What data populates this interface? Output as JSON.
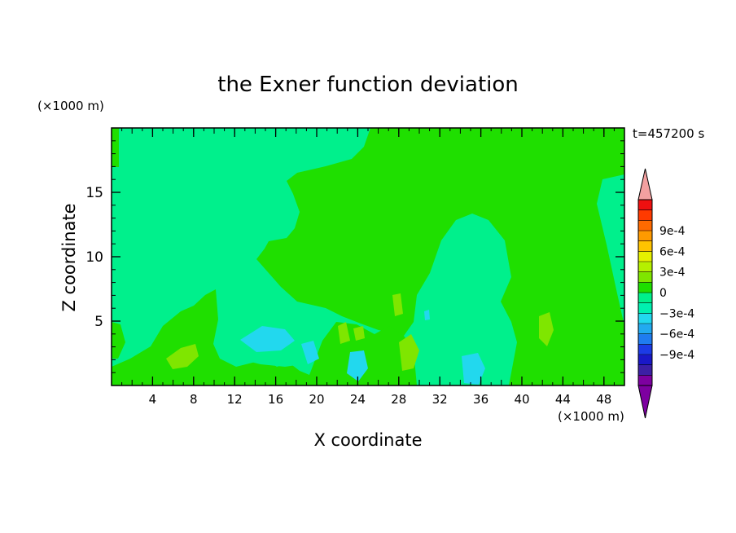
{
  "chart_data": {
    "type": "heatmap",
    "title": "the Exner function deviation",
    "xlabel": "X coordinate",
    "ylabel": "Z coordinate",
    "x_unit": "(×1000 m)",
    "y_unit": "(×1000 m)",
    "time_label": "t=457200 s",
    "xlim": [
      0,
      50
    ],
    "ylim": [
      0,
      20
    ],
    "x_ticks": [
      4,
      8,
      12,
      16,
      20,
      24,
      28,
      32,
      36,
      40,
      44,
      48
    ],
    "y_ticks": [
      5,
      10,
      15
    ],
    "colorbar": {
      "levels": [
        -0.0009,
        -0.0006,
        -0.0003,
        0,
        0.0003,
        0.0006,
        0.0009
      ],
      "tick_labels": [
        "9e-4",
        "6e-4",
        "3e-4",
        "0",
        "−3e-4",
        "−6e-4",
        "−9e-4"
      ],
      "colors_bottom_to_top": [
        "#7d00a0",
        "#3c1fa5",
        "#1a18c8",
        "#1c3be6",
        "#1f7cf0",
        "#22aaf0",
        "#22d8ee",
        "#00f0b0",
        "#00f08c",
        "#1fdf00",
        "#7fe600",
        "#b5f000",
        "#e6f000",
        "#ffc400",
        "#ff9a00",
        "#ff6a00",
        "#ff3a00",
        "#ee1010"
      ],
      "over_color": "#f3a0a0",
      "under_color": "#7d00a0"
    },
    "field_colors": {
      "zero_to_positive": "#1fdf00",
      "small_negative": "#00f08c",
      "moderate_negative": "#22d8ee",
      "small_positive": "#7fe600"
    }
  }
}
